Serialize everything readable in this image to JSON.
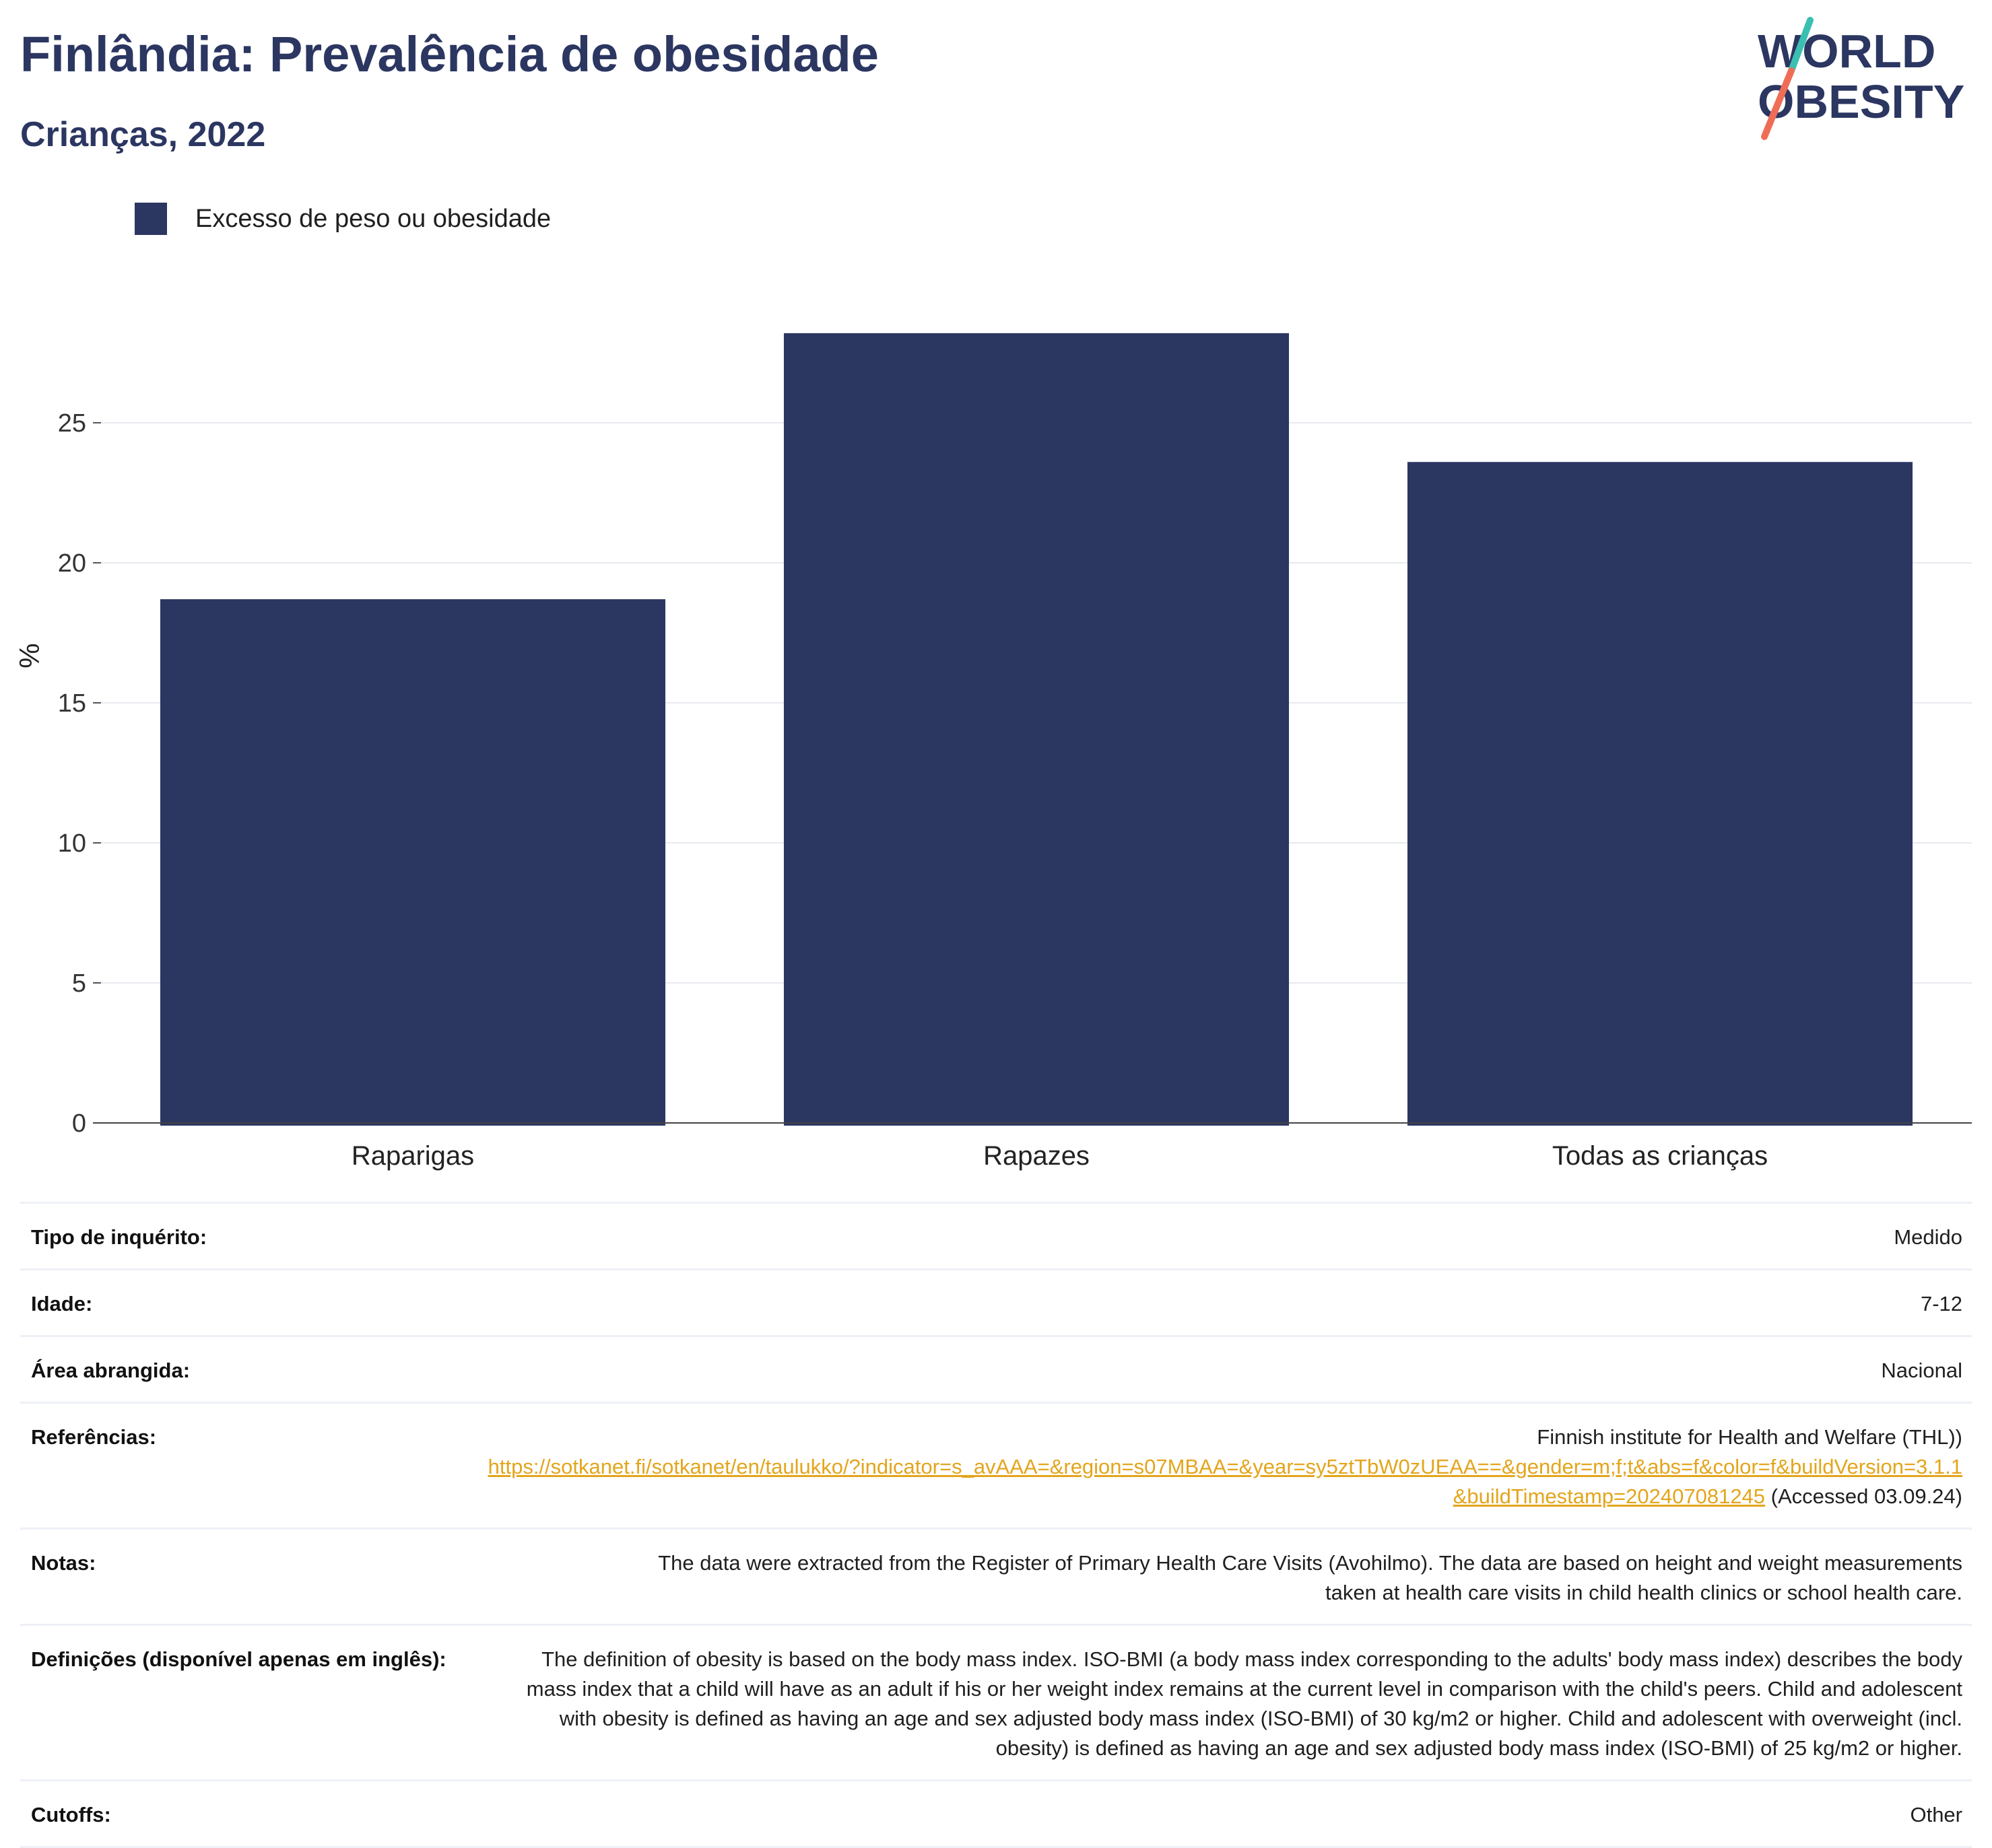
{
  "header": {
    "title": "Finlândia: Prevalência de obesidade",
    "subtitle": "Crianças, 2022",
    "logo": {
      "line1": "WORLD",
      "line2": "OBESITY"
    }
  },
  "legend": {
    "label": "Excesso de peso ou obesidade"
  },
  "colors": {
    "bar": "#2b3661",
    "title": "#2b3661",
    "link": "#e3a51c",
    "logo_teal": "#3bbfb2",
    "logo_coral": "#ef6d57"
  },
  "chart_data": {
    "type": "bar",
    "categories": [
      "Raparigas",
      "Rapazes",
      "Todas as crianças"
    ],
    "series": [
      {
        "name": "Excesso de peso ou obesidade",
        "values": [
          18.7,
          28.2,
          23.6
        ]
      }
    ],
    "ylabel": "%",
    "xlabel": "",
    "ylim": [
      0,
      30
    ],
    "yticks": [
      0,
      5,
      10,
      15,
      20,
      25
    ],
    "grid": true,
    "legend_position": "top-left"
  },
  "info": {
    "survey_type": {
      "label": "Tipo de inquérito:",
      "value": "Medido"
    },
    "age": {
      "label": "Idade:",
      "value": "7-12"
    },
    "coverage": {
      "label": "Área abrangida:",
      "value": "Nacional"
    },
    "references": {
      "label": "Referências:",
      "source": "Finnish institute for Health and Welfare (THL))",
      "url": "https://sotkanet.fi/sotkanet/en/taulukko/?indicator=s_avAAA=&region=s07MBAA=&year=sy5ztTbW0zUEAA==&gender=m;f;t&abs=f&color=f&buildVersion=3.1.1&buildTimestamp=202407081245",
      "accessed": " (Accessed 03.09.24)"
    },
    "notes": {
      "label": "Notas:",
      "value": "The data were extracted from the Register of Primary Health Care Visits (Avohilmo). The data are based on height and weight measurements taken at health care visits in child health clinics or school health care."
    },
    "definitions": {
      "label": "Definições (disponível apenas em inglês):",
      "value": "The definition of obesity is based on the body mass index. ISO-BMI (a body mass index corresponding to the adults' body mass index) describes the body mass index that a child will have as an adult if his or her weight index remains at the current level in comparison with the child's peers. Child and adolescent with obesity is defined as having an age and sex adjusted body mass index (ISO-BMI) of 30 kg/m2 or higher. Child and adolescent with overweight (incl. obesity) is defined as having an age and sex adjusted body mass index (ISO-BMI) of 25 kg/m2 or higher."
    },
    "cutoffs": {
      "label": "Cutoffs:",
      "value": "Other"
    }
  }
}
